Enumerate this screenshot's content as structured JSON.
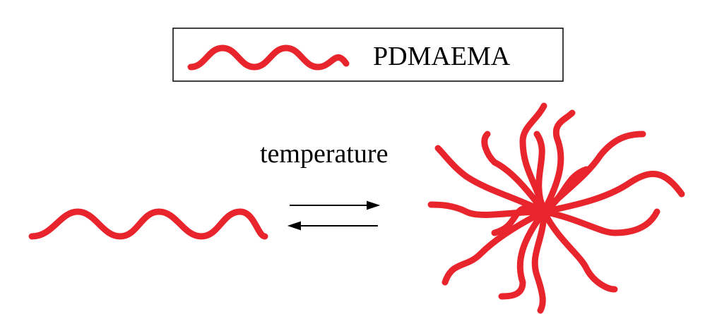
{
  "legend": {
    "label": "PDMAEMA"
  },
  "condition": {
    "label": "temperature"
  }
}
